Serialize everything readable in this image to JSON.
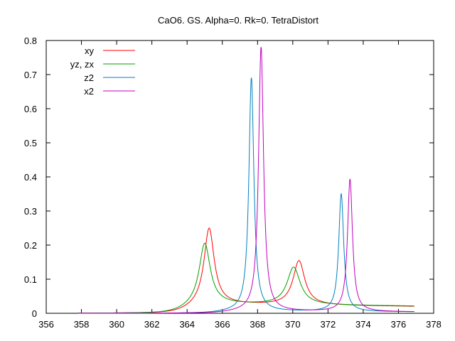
{
  "chart_data": {
    "type": "line",
    "title": "CaO6. GS. Alpha=0. Rk=0. TetraDistort",
    "xlabel": "",
    "ylabel": "",
    "xlim": [
      356,
      378
    ],
    "ylim": [
      0,
      0.8
    ],
    "x_ticks": [
      "356",
      "358",
      "360",
      "362",
      "364",
      "366",
      "368",
      "370",
      "372",
      "374",
      "376",
      "378"
    ],
    "y_ticks": [
      "0",
      "0.1",
      "0.2",
      "0.3",
      "0.4",
      "0.5",
      "0.6",
      "0.7",
      "0.8"
    ],
    "grid": false,
    "legend_position": "top-left",
    "x_range": [
      357.8,
      376.9
    ],
    "series": [
      {
        "name": "xy",
        "color": "#ff0000",
        "peaks": [
          {
            "center": 365.25,
            "height": 0.225,
            "width": 0.35
          },
          {
            "center": 370.35,
            "height": 0.13,
            "width": 0.4
          }
        ],
        "background": {
          "start": 364.2,
          "level": 0.027,
          "end_level": 0.02
        }
      },
      {
        "name": "yz, zx",
        "color": "#00a000",
        "peaks": [
          {
            "center": 365.0,
            "height": 0.18,
            "width": 0.38
          },
          {
            "center": 370.05,
            "height": 0.11,
            "width": 0.45
          }
        ],
        "background": {
          "start": 364.0,
          "level": 0.028,
          "end_level": 0.021
        }
      },
      {
        "name": "z2",
        "color": "#0080c0",
        "peaks": [
          {
            "center": 367.65,
            "height": 0.685,
            "width": 0.17
          },
          {
            "center": 372.75,
            "height": 0.345,
            "width": 0.17
          }
        ],
        "background": {
          "start": 366.0,
          "level": 0.006,
          "end_level": 0.004
        }
      },
      {
        "name": "x2",
        "color": "#c000c0",
        "peaks": [
          {
            "center": 368.2,
            "height": 0.775,
            "width": 0.17
          },
          {
            "center": 373.25,
            "height": 0.388,
            "width": 0.17
          }
        ],
        "background": {
          "start": 366.5,
          "level": 0.006,
          "end_level": 0.004
        }
      }
    ]
  }
}
